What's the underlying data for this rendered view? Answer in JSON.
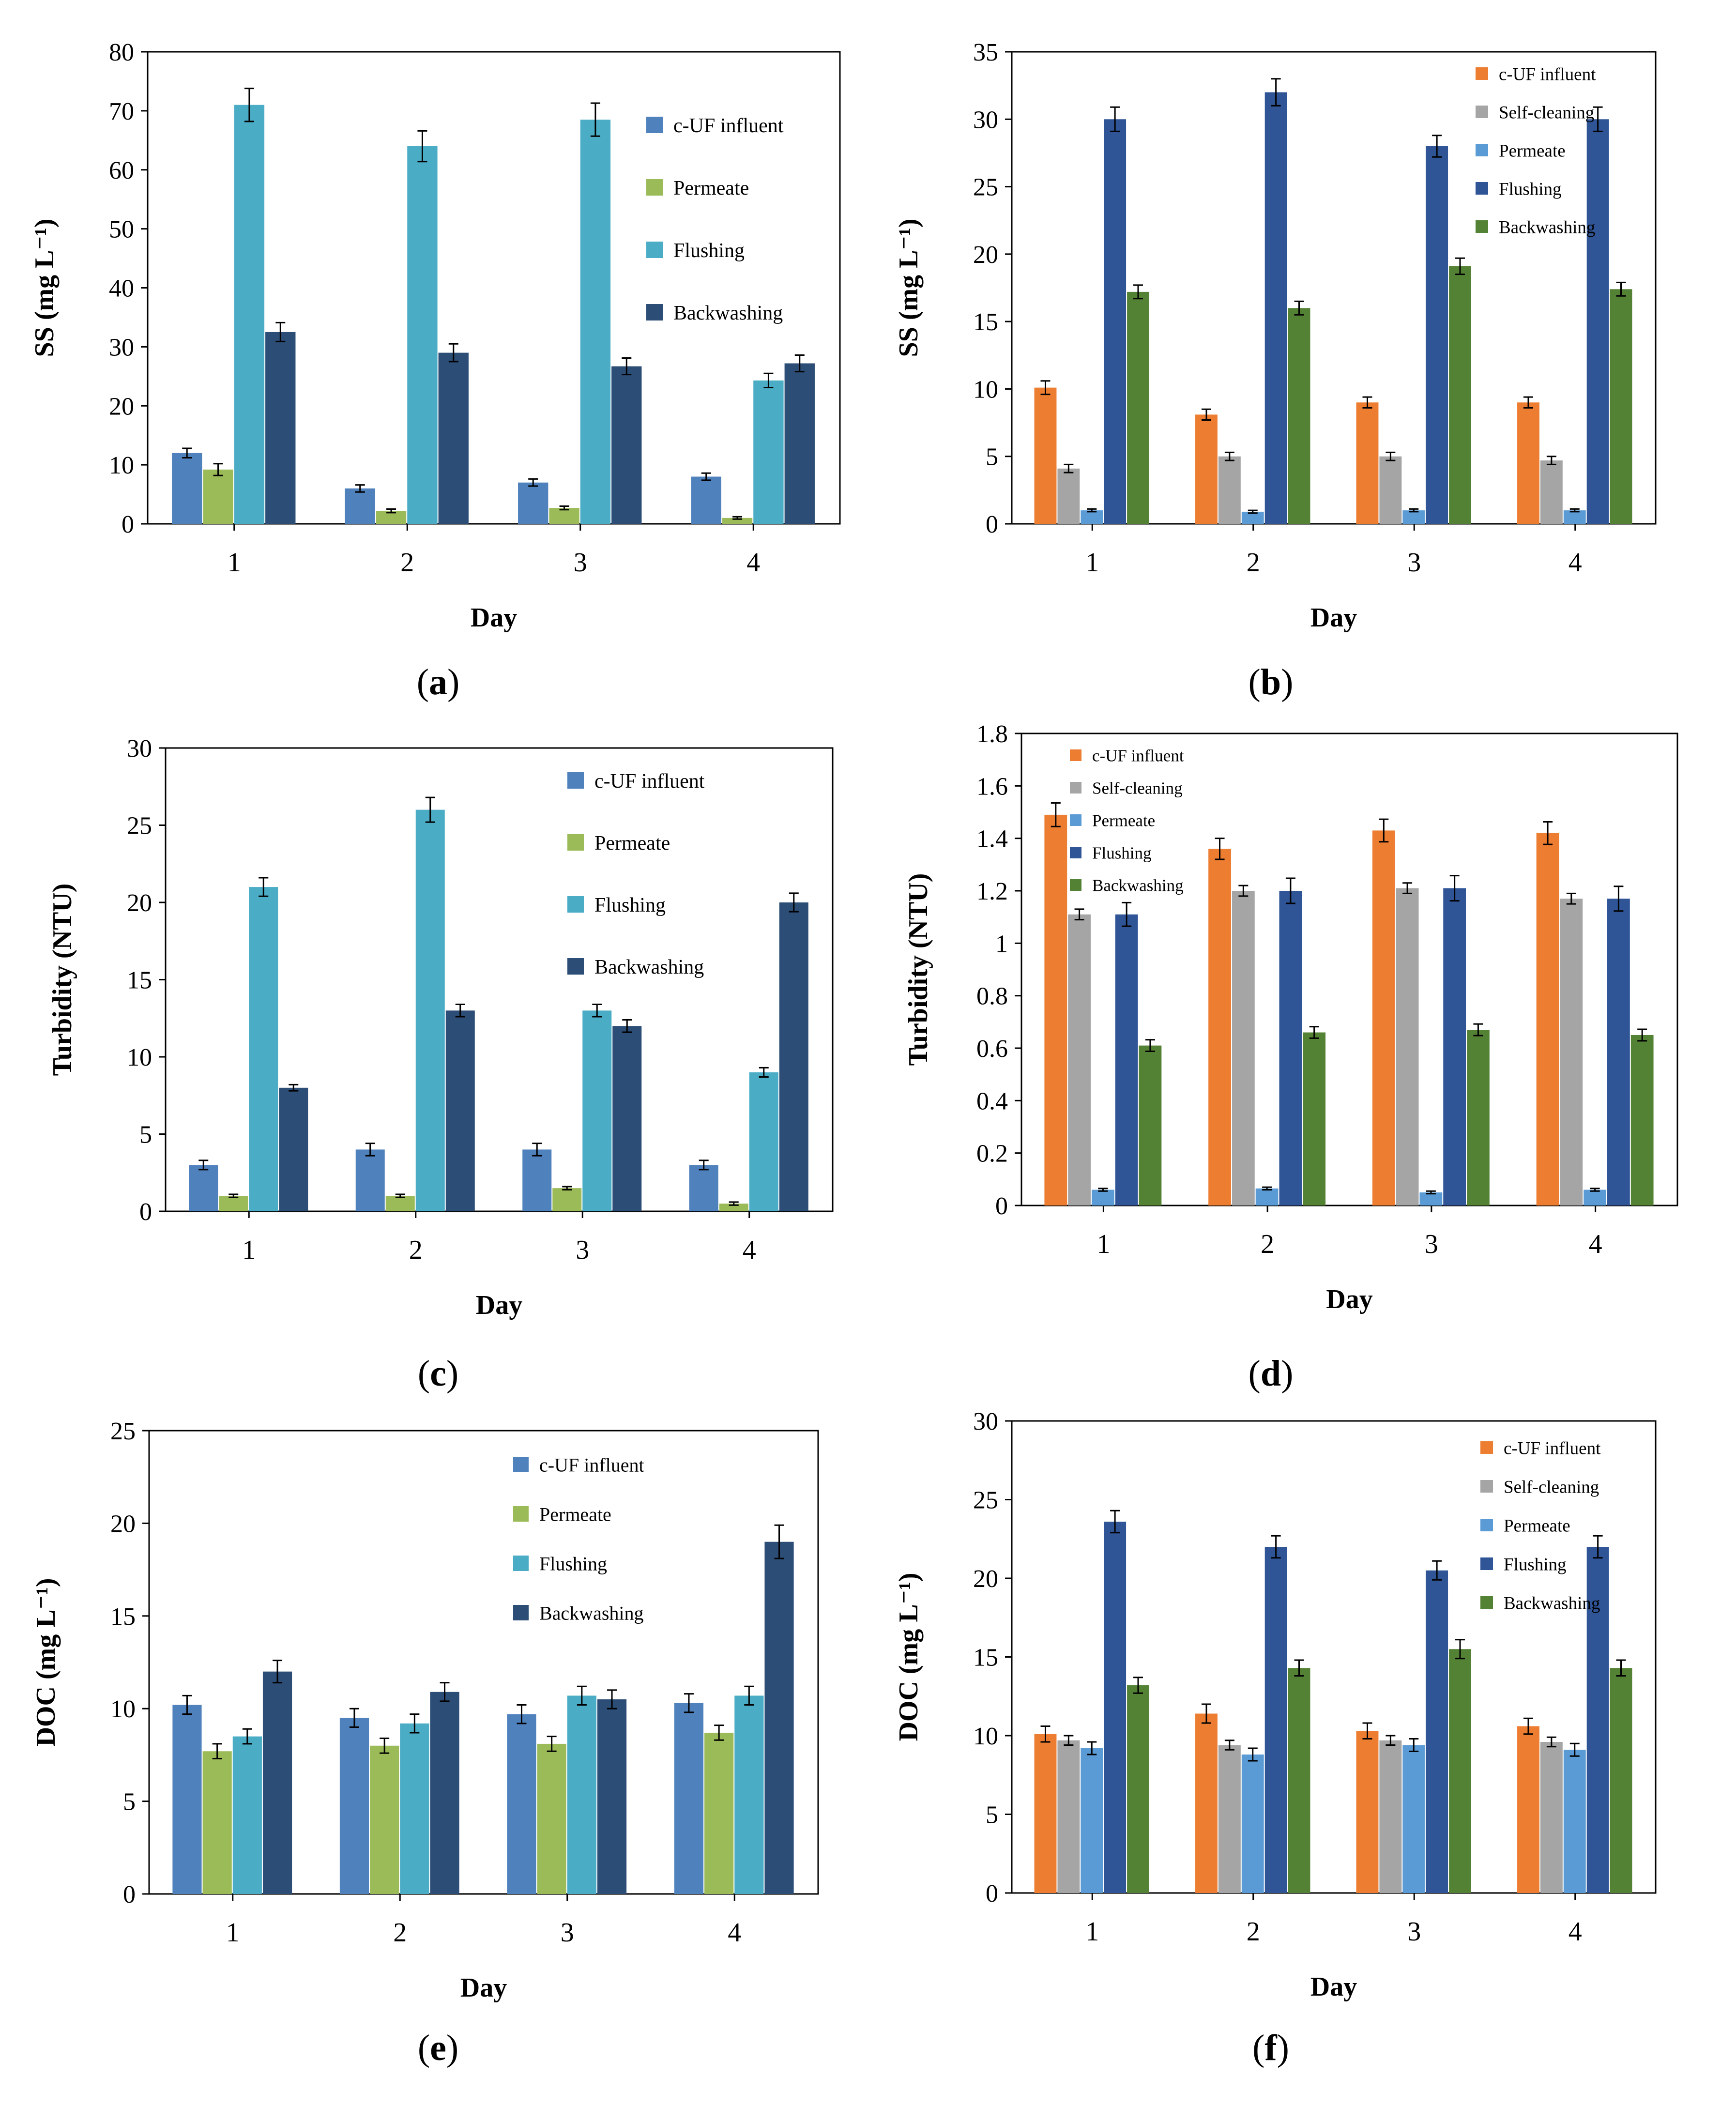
{
  "figure": {
    "xlabel": "Day",
    "colors": {
      "orange": "#ED7D31",
      "gray": "#A5A5A5",
      "lightblue": "#5B9BD5",
      "darkblue": "#2F5597",
      "green": "#548235",
      "blue": "#4F81BD",
      "olive": "#9BBB59",
      "teal": "#4BACC6",
      "navy": "#2C4D75"
    }
  },
  "chart_data": [
    {
      "panel": "a",
      "label": "(a)",
      "type": "bar",
      "title": "",
      "xlabel": "Day",
      "ylabel": "SS (mg L⁻¹)",
      "ylim": [
        0,
        80
      ],
      "yticks": [
        0,
        10,
        20,
        30,
        40,
        50,
        60,
        70,
        80
      ],
      "categories": [
        "1",
        "2",
        "3",
        "4"
      ],
      "series": [
        {
          "name": "c-UF influent",
          "color": "#4F81BD",
          "values": [
            12,
            6,
            7,
            8
          ],
          "errors": [
            0.8,
            0.6,
            0.6,
            0.6
          ]
        },
        {
          "name": "Permeate",
          "color": "#9BBB59",
          "values": [
            9.2,
            2.2,
            2.7,
            1.0
          ],
          "errors": [
            1.0,
            0.3,
            0.3,
            0.2
          ]
        },
        {
          "name": "Flushing",
          "color": "#4BACC6",
          "values": [
            71,
            64,
            68.5,
            24.3
          ],
          "errors": [
            2.8,
            2.6,
            2.8,
            1.2
          ]
        },
        {
          "name": "Backwashing",
          "color": "#2C4D75",
          "values": [
            32.5,
            29,
            26.7,
            27.2
          ],
          "errors": [
            1.6,
            1.5,
            1.4,
            1.4
          ]
        }
      ]
    },
    {
      "panel": "b",
      "label": "(b)",
      "type": "bar",
      "title": "",
      "xlabel": "Day",
      "ylabel": "SS (mg L⁻¹)",
      "ylim": [
        0,
        35
      ],
      "yticks": [
        0,
        5,
        10,
        15,
        20,
        25,
        30,
        35
      ],
      "categories": [
        "1",
        "2",
        "3",
        "4"
      ],
      "series": [
        {
          "name": "c-UF influent",
          "color": "#ED7D31",
          "values": [
            10.1,
            8.1,
            9.0,
            9.0
          ],
          "errors": [
            0.5,
            0.4,
            0.4,
            0.4
          ]
        },
        {
          "name": "Self-cleaning",
          "color": "#A5A5A5",
          "values": [
            4.1,
            5.0,
            5.0,
            4.7
          ],
          "errors": [
            0.3,
            0.3,
            0.3,
            0.3
          ]
        },
        {
          "name": "Permeate",
          "color": "#5B9BD5",
          "values": [
            1.0,
            0.9,
            1.0,
            1.0
          ],
          "errors": [
            0.1,
            0.1,
            0.1,
            0.1
          ]
        },
        {
          "name": "Flushing",
          "color": "#2F5597",
          "values": [
            30,
            32,
            28,
            30
          ],
          "errors": [
            0.9,
            1.0,
            0.8,
            0.9
          ]
        },
        {
          "name": "Backwashing",
          "color": "#548235",
          "values": [
            17.2,
            16.0,
            19.1,
            17.4
          ],
          "errors": [
            0.5,
            0.5,
            0.6,
            0.5
          ]
        }
      ]
    },
    {
      "panel": "c",
      "label": "(c)",
      "type": "bar",
      "title": "",
      "xlabel": "Day",
      "ylabel": "Turbidity (NTU)",
      "ylim": [
        0,
        30
      ],
      "yticks": [
        0,
        5,
        10,
        15,
        20,
        25,
        30
      ],
      "categories": [
        "1",
        "2",
        "3",
        "4"
      ],
      "series": [
        {
          "name": "c-UF influent",
          "color": "#4F81BD",
          "values": [
            3.0,
            4.0,
            4.0,
            3.0
          ],
          "errors": [
            0.3,
            0.4,
            0.4,
            0.3
          ]
        },
        {
          "name": "Permeate",
          "color": "#9BBB59",
          "values": [
            1.0,
            1.0,
            1.5,
            0.5
          ],
          "errors": [
            0.1,
            0.1,
            0.1,
            0.1
          ]
        },
        {
          "name": "Flushing",
          "color": "#4BACC6",
          "values": [
            21,
            26,
            13,
            9
          ],
          "errors": [
            0.6,
            0.8,
            0.4,
            0.3
          ]
        },
        {
          "name": "Backwashing",
          "color": "#2C4D75",
          "values": [
            8.0,
            13.0,
            12.0,
            20.0
          ],
          "errors": [
            0.2,
            0.4,
            0.4,
            0.6
          ]
        }
      ]
    },
    {
      "panel": "d",
      "label": "(d)",
      "type": "bar",
      "title": "",
      "xlabel": "Day",
      "ylabel": "Turbidity (NTU)",
      "ylim": [
        0,
        1.8
      ],
      "yticks": [
        0,
        0.2,
        0.4,
        0.6,
        0.8,
        1,
        1.2,
        1.4,
        1.6,
        1.8
      ],
      "categories": [
        "1",
        "2",
        "3",
        "4"
      ],
      "series": [
        {
          "name": "c-UF influent",
          "color": "#ED7D31",
          "values": [
            1.49,
            1.36,
            1.43,
            1.42
          ],
          "errors": [
            0.045,
            0.04,
            0.043,
            0.043
          ]
        },
        {
          "name": "Self-cleaning",
          "color": "#A5A5A5",
          "values": [
            1.11,
            1.2,
            1.21,
            1.17
          ],
          "errors": [
            0.02,
            0.02,
            0.02,
            0.02
          ]
        },
        {
          "name": "Permeate",
          "color": "#5B9BD5",
          "values": [
            0.06,
            0.065,
            0.05,
            0.06
          ],
          "errors": [
            0.005,
            0.005,
            0.005,
            0.005
          ]
        },
        {
          "name": "Flushing",
          "color": "#2F5597",
          "values": [
            1.11,
            1.2,
            1.21,
            1.17
          ],
          "errors": [
            0.045,
            0.048,
            0.048,
            0.047
          ]
        },
        {
          "name": "Backwashing",
          "color": "#548235",
          "values": [
            0.61,
            0.66,
            0.67,
            0.65
          ],
          "errors": [
            0.022,
            0.022,
            0.022,
            0.022
          ]
        }
      ]
    },
    {
      "panel": "e",
      "label": "(e)",
      "type": "bar",
      "title": "",
      "xlabel": "Day",
      "ylabel": "DOC (mg L⁻¹)",
      "ylim": [
        0,
        25
      ],
      "yticks": [
        0,
        5,
        10,
        15,
        20,
        25
      ],
      "categories": [
        "1",
        "2",
        "3",
        "4"
      ],
      "series": [
        {
          "name": "c-UF influent",
          "color": "#4F81BD",
          "values": [
            10.2,
            9.5,
            9.7,
            10.3
          ],
          "errors": [
            0.5,
            0.5,
            0.5,
            0.5
          ]
        },
        {
          "name": "Permeate",
          "color": "#9BBB59",
          "values": [
            7.7,
            8.0,
            8.1,
            8.7
          ],
          "errors": [
            0.4,
            0.4,
            0.4,
            0.4
          ]
        },
        {
          "name": "Flushing",
          "color": "#4BACC6",
          "values": [
            8.5,
            9.2,
            10.7,
            10.7
          ],
          "errors": [
            0.4,
            0.5,
            0.5,
            0.5
          ]
        },
        {
          "name": "Backwashing",
          "color": "#2C4D75",
          "values": [
            12.0,
            10.9,
            10.5,
            19.0
          ],
          "errors": [
            0.6,
            0.5,
            0.5,
            0.9
          ]
        }
      ]
    },
    {
      "panel": "f",
      "label": "(f)",
      "type": "bar",
      "title": "",
      "xlabel": "Day",
      "ylabel": "DOC (mg L⁻¹)",
      "ylim": [
        0,
        30
      ],
      "yticks": [
        0,
        5,
        10,
        15,
        20,
        25,
        30
      ],
      "categories": [
        "1",
        "2",
        "3",
        "4"
      ],
      "series": [
        {
          "name": "c-UF influent",
          "color": "#ED7D31",
          "values": [
            10.1,
            11.4,
            10.3,
            10.6
          ],
          "errors": [
            0.5,
            0.6,
            0.5,
            0.5
          ]
        },
        {
          "name": "Self-cleaning",
          "color": "#A5A5A5",
          "values": [
            9.7,
            9.4,
            9.7,
            9.6
          ],
          "errors": [
            0.3,
            0.3,
            0.3,
            0.3
          ]
        },
        {
          "name": "Permeate",
          "color": "#5B9BD5",
          "values": [
            9.2,
            8.8,
            9.4,
            9.1
          ],
          "errors": [
            0.4,
            0.4,
            0.4,
            0.4
          ]
        },
        {
          "name": "Flushing",
          "color": "#2F5597",
          "values": [
            23.6,
            22.0,
            20.5,
            22.0
          ],
          "errors": [
            0.7,
            0.7,
            0.6,
            0.7
          ]
        },
        {
          "name": "Backwashing",
          "color": "#548235",
          "values": [
            13.2,
            14.3,
            15.5,
            14.3
          ],
          "errors": [
            0.5,
            0.5,
            0.6,
            0.5
          ]
        }
      ]
    }
  ]
}
